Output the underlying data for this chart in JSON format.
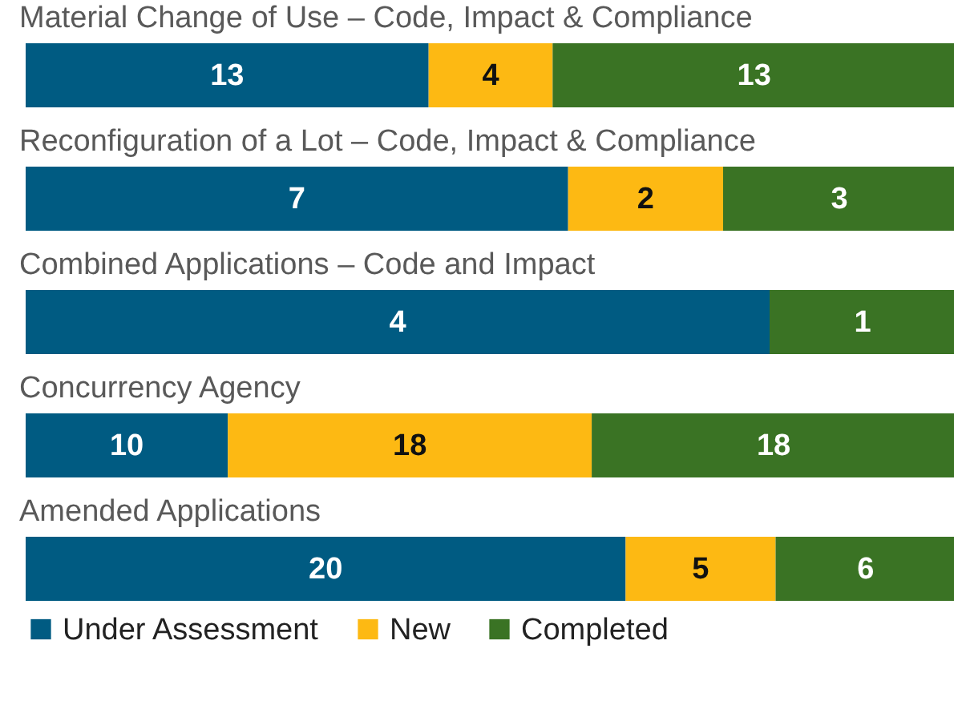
{
  "chart_data": [
    {
      "type": "bar",
      "title": "Material Change of Use – Code, Impact & Compliance",
      "categories": [
        null
      ],
      "stacked": true,
      "orientation": "horizontal",
      "xlim": [
        0,
        30
      ],
      "tick_labels": false,
      "data_labels": true,
      "series": [
        {
          "color": "#005b82",
          "values": [
            13
          ]
        },
        {
          "color": "#fdb913",
          "values": [
            4
          ]
        },
        {
          "color": "#3a7324",
          "values": [
            13
          ]
        }
      ]
    },
    {
      "type": "bar",
      "title": "Reconfiguration of a Lot – Code, Impact & Compliance",
      "categories": [
        null
      ],
      "stacked": true,
      "orientation": "horizontal",
      "xlim": [
        0,
        12
      ],
      "tick_labels": false,
      "data_labels": true,
      "series": [
        {
          "color": "#005b82",
          "values": [
            7
          ]
        },
        {
          "color": "#fdb913",
          "values": [
            2
          ]
        },
        {
          "color": "#3a7324",
          "values": [
            3
          ]
        }
      ]
    },
    {
      "type": "bar",
      "title": "Combined Applications – Code and Impact",
      "categories": [
        null
      ],
      "stacked": true,
      "orientation": "horizontal",
      "xlim": [
        0,
        5
      ],
      "tick_labels": false,
      "data_labels": true,
      "series": [
        {
          "color": "#005b82",
          "values": [
            4
          ]
        },
        {
          "color": "#3a7324",
          "values": [
            1
          ]
        }
      ]
    },
    {
      "type": "bar",
      "title": "Concurrency Agency",
      "categories": [
        null
      ],
      "stacked": true,
      "orientation": "horizontal",
      "xlim": [
        0,
        46
      ],
      "tick_labels": false,
      "data_labels": true,
      "series": [
        {
          "color": "#005b82",
          "values": [
            10
          ]
        },
        {
          "color": "#fdb913",
          "values": [
            18
          ]
        },
        {
          "color": "#3a7324",
          "values": [
            18
          ]
        }
      ]
    },
    {
      "type": "bar",
      "title": "Amended Applications",
      "categories": [
        null
      ],
      "stacked": true,
      "orientation": "horizontal",
      "xlim": [
        0,
        31
      ],
      "tick_labels": false,
      "data_labels": true,
      "legend": "bottom",
      "series": [
        {
          "name": "Under Assessment",
          "color": "#005b82",
          "values": [
            20
          ]
        },
        {
          "name": "New",
          "color": "#fdb913",
          "values": [
            5
          ]
        },
        {
          "name": "Completed",
          "color": "#3a7324",
          "values": [
            6
          ]
        }
      ]
    }
  ]
}
